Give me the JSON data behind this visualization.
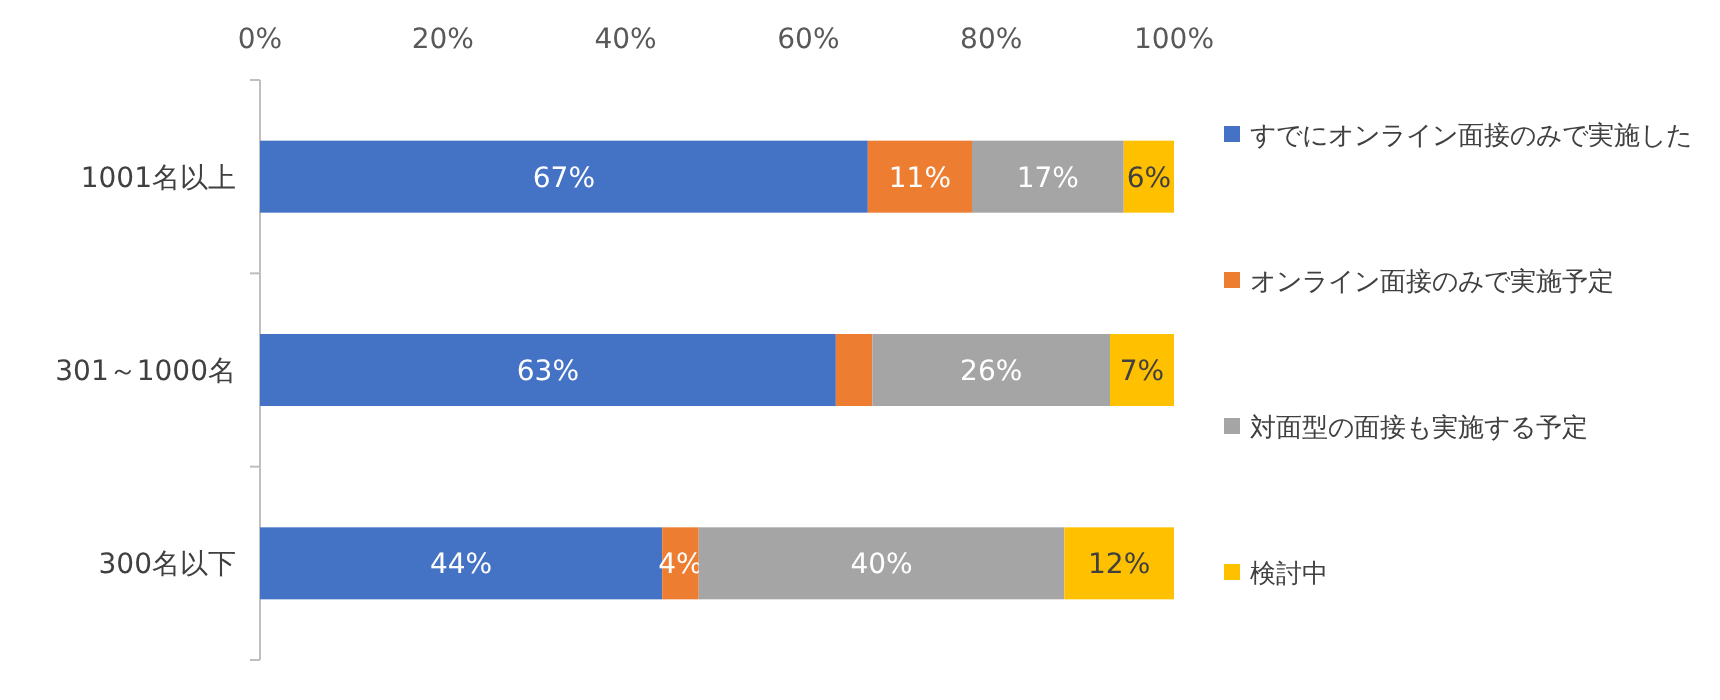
{
  "chart_data": {
    "type": "bar",
    "orientation": "horizontal",
    "stacked": true,
    "categories": [
      "1001名以上",
      "301～1000名",
      "300名以下"
    ],
    "series": [
      {
        "name": "すでにオンライン面接のみで実施した",
        "color": "#4472c4",
        "values": [
          66.5,
          63,
          44
        ],
        "value_labels": [
          "67%",
          "63%",
          "44%"
        ]
      },
      {
        "name": "オンライン面接のみで実施予定",
        "color": "#ed7d31",
        "values": [
          11.4,
          4,
          4
        ],
        "value_labels": [
          "11%",
          null,
          "4%"
        ]
      },
      {
        "name": "対面型の面接も実施する予定",
        "color": "#a5a5a5",
        "values": [
          16.6,
          26,
          40
        ],
        "value_labels": [
          "17%",
          "26%",
          "40%"
        ]
      },
      {
        "name": "検討中",
        "color": "#ffc000",
        "values": [
          5.5,
          7,
          12
        ],
        "value_labels": [
          "6%",
          "7%",
          "12%"
        ]
      }
    ],
    "xlim": [
      0,
      100
    ],
    "xticks": [
      {
        "value": 0,
        "label": "0%"
      },
      {
        "value": 20,
        "label": "20%"
      },
      {
        "value": 40,
        "label": "40%"
      },
      {
        "value": 60,
        "label": "60%"
      },
      {
        "value": 80,
        "label": "80%"
      },
      {
        "value": 100,
        "label": "100%"
      }
    ],
    "legend": "right",
    "grid": false
  }
}
